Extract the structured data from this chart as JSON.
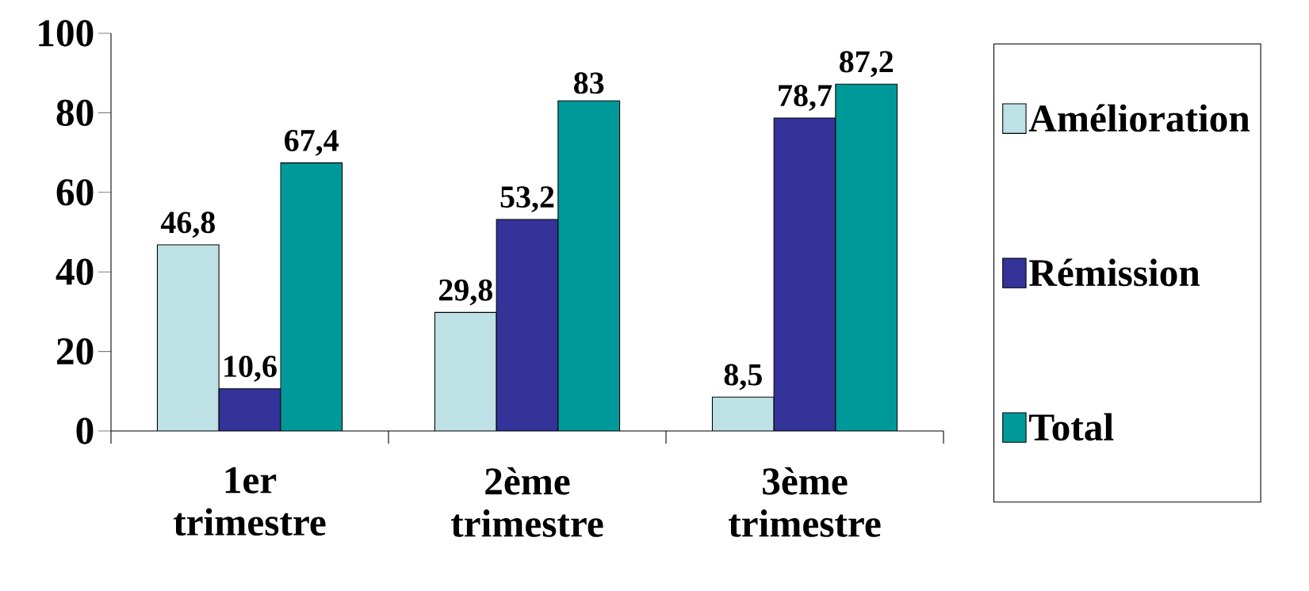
{
  "chart_data": {
    "type": "bar",
    "categories": [
      "1er trimestre",
      "2ème trimestre",
      "3ème trimestre"
    ],
    "series": [
      {
        "name": "Amélioration",
        "color": "#bde1e4",
        "values": [
          46.8,
          29.8,
          8.5
        ],
        "value_labels": [
          "46,8",
          "29,8",
          "8,5"
        ]
      },
      {
        "name": "Rémission",
        "color": "#333399",
        "values": [
          10.6,
          53.2,
          78.7
        ],
        "value_labels": [
          "10,6",
          "53,2",
          "78,7"
        ]
      },
      {
        "name": "Total",
        "color": "#009999",
        "values": [
          67.4,
          83,
          87.2
        ],
        "value_labels": [
          "67,4",
          "83",
          "87,2"
        ]
      }
    ],
    "ylim": [
      0,
      100
    ],
    "yticks": [
      0,
      20,
      40,
      60,
      80,
      100
    ],
    "legend": "right",
    "grid": false
  }
}
